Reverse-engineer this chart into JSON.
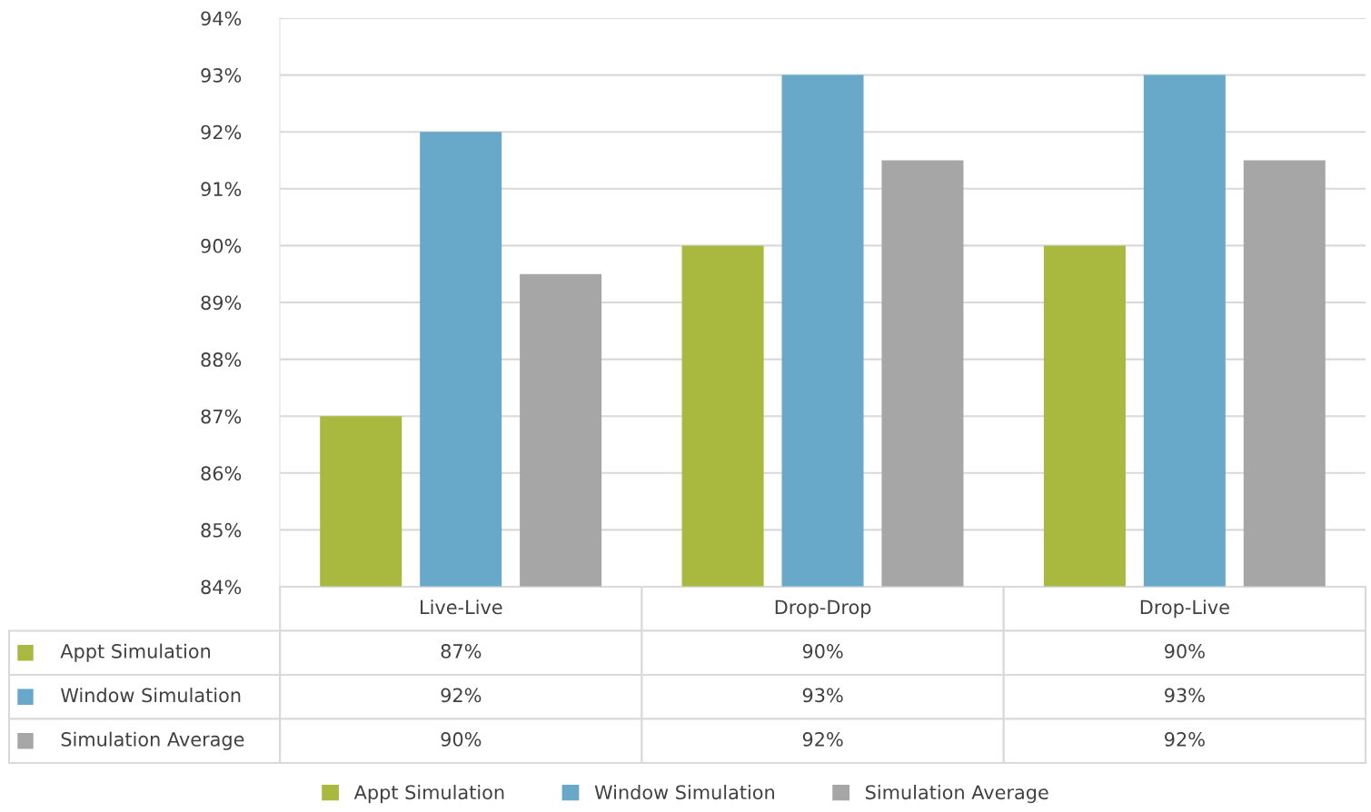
{
  "chart_data": {
    "type": "bar",
    "categories": [
      "Live-Live",
      "Drop-Drop",
      "Drop-Live"
    ],
    "series": [
      {
        "name": "Appt Simulation",
        "color": "#a9b83e",
        "values": [
          87,
          90,
          90
        ],
        "value_labels": [
          "87%",
          "90%",
          "90%"
        ]
      },
      {
        "name": "Window Simulation",
        "color": "#68a9c9",
        "values": [
          92,
          93,
          93
        ],
        "value_labels": [
          "92%",
          "93%",
          "93%"
        ]
      },
      {
        "name": "Simulation Average",
        "color": "#a6a6a6",
        "values": [
          89.5,
          91.5,
          91.5
        ],
        "value_labels": [
          "90%",
          "92%",
          "92%"
        ]
      }
    ],
    "ylim": [
      84,
      94
    ],
    "yticks": [
      {
        "value": 84,
        "label": "84%"
      },
      {
        "value": 85,
        "label": "85%"
      },
      {
        "value": 86,
        "label": "86%"
      },
      {
        "value": 87,
        "label": "87%"
      },
      {
        "value": 88,
        "label": "88%"
      },
      {
        "value": 89,
        "label": "89%"
      },
      {
        "value": 90,
        "label": "90%"
      },
      {
        "value": 91,
        "label": "91%"
      },
      {
        "value": 92,
        "label": "92%"
      },
      {
        "value": 93,
        "label": "93%"
      },
      {
        "value": 94,
        "label": "94%"
      }
    ],
    "grid": "y",
    "legend": "bottom"
  }
}
